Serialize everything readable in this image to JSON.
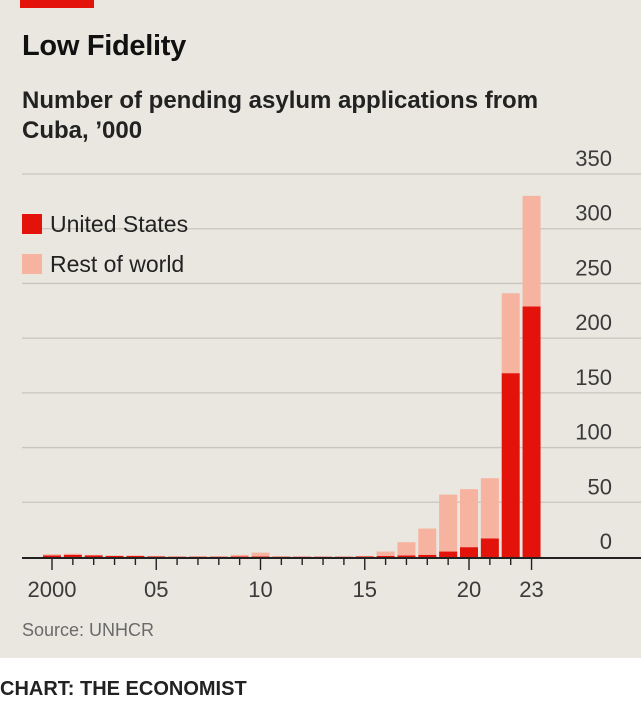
{
  "header": {
    "title": "Low Fidelity",
    "subtitle": "Number of pending asylum applications from Cuba, ’000"
  },
  "source": "Source: UNHCR",
  "credit": "CHART: THE ECONOMIST",
  "colors": {
    "background": "#e9e7e0",
    "accent": "#e3120b",
    "united_states": "#e3120b",
    "rest_of_world": "#f6b39f",
    "grid": "#c9c6bd"
  },
  "chart_data": {
    "type": "bar",
    "stacked": true,
    "title": "Low Fidelity",
    "subtitle": "Number of pending asylum applications from Cuba, ’000",
    "xlabel": "",
    "ylabel": "",
    "ylim": [
      0,
      350
    ],
    "y_ticks": [
      0,
      50,
      100,
      150,
      200,
      250,
      300,
      350
    ],
    "y_axis_position": "right",
    "grid": true,
    "legend_position": "top-left",
    "x": [
      2000,
      2001,
      2002,
      2003,
      2004,
      2005,
      2006,
      2007,
      2008,
      2009,
      2010,
      2011,
      2012,
      2013,
      2014,
      2015,
      2016,
      2017,
      2018,
      2019,
      2020,
      2021,
      2022,
      2023
    ],
    "x_tick_labels": [
      {
        "year": 2000,
        "label": "2000"
      },
      {
        "year": 2005,
        "label": "05"
      },
      {
        "year": 2010,
        "label": "10"
      },
      {
        "year": 2015,
        "label": "15"
      },
      {
        "year": 2020,
        "label": "20"
      },
      {
        "year": 2023,
        "label": "23"
      }
    ],
    "series": [
      {
        "name": "United States",
        "color": "#e3120b",
        "values": [
          1.5,
          2,
          1.5,
          1,
          1,
          0.5,
          0.3,
          0.3,
          0.3,
          0.5,
          0.5,
          0.3,
          0.3,
          0.3,
          0.3,
          0.5,
          1,
          1.5,
          2,
          5,
          9,
          17,
          168,
          229
        ]
      },
      {
        "name": "Rest of world",
        "color": "#f6b39f",
        "values": [
          1,
          1,
          0.5,
          0.5,
          0.5,
          0.5,
          0.5,
          0.5,
          0.5,
          1.5,
          3.5,
          0.5,
          0.3,
          0.3,
          0.3,
          0.5,
          4,
          12,
          24,
          52,
          53,
          55,
          73,
          101
        ]
      }
    ]
  }
}
